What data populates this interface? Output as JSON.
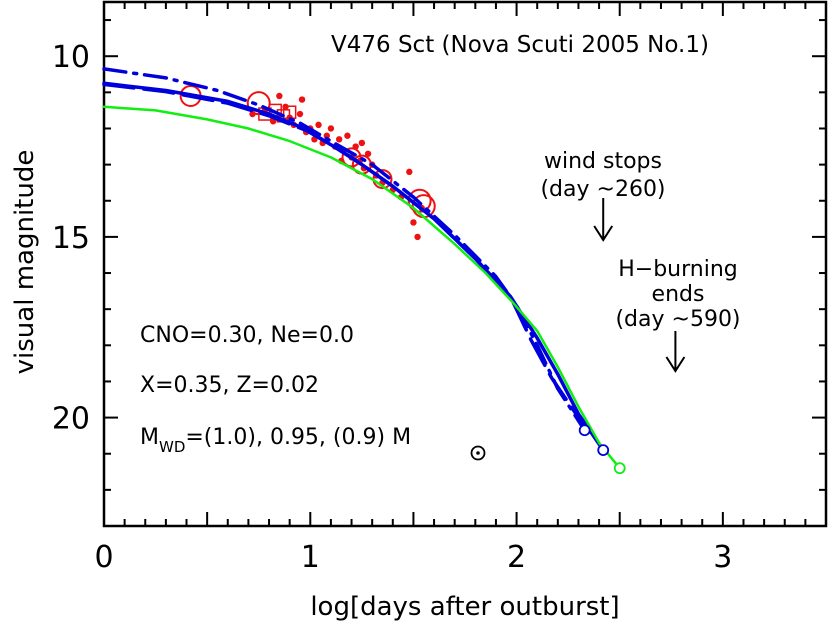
{
  "chart_data": {
    "type": "line",
    "title": "V476 Sct (Nova Scuti 2005 No.1)",
    "xlabel": "log[days after outburst]",
    "ylabel": "visual magnitude",
    "xlim": [
      0,
      3.5
    ],
    "ylim": [
      23,
      8.5
    ],
    "y_inverted": true,
    "x_ticks": [
      0,
      1,
      2,
      3
    ],
    "y_ticks": [
      10,
      15,
      20
    ],
    "grid": false,
    "series": [
      {
        "color": "#0000dd",
        "style": "solid",
        "points": [
          [
            0,
            10.75
          ],
          [
            0.3,
            10.95
          ],
          [
            0.6,
            11.25
          ],
          [
            0.8,
            11.6
          ],
          [
            0.95,
            11.95
          ],
          [
            1.1,
            12.45
          ],
          [
            1.25,
            13.0
          ],
          [
            1.4,
            13.6
          ],
          [
            1.6,
            14.5
          ],
          [
            1.8,
            15.6
          ],
          [
            1.97,
            16.65
          ],
          [
            2.1,
            17.8
          ],
          [
            2.2,
            18.8
          ],
          [
            2.3,
            19.9
          ],
          [
            2.42,
            20.9
          ]
        ]
      },
      {
        "color": "#0000dd",
        "style": "dash-dot",
        "points": [
          [
            0,
            10.35
          ],
          [
            0.3,
            10.6
          ],
          [
            0.55,
            10.95
          ],
          [
            0.75,
            11.35
          ],
          [
            0.95,
            11.85
          ],
          [
            1.1,
            12.35
          ],
          [
            1.3,
            13.0
          ],
          [
            1.5,
            13.9
          ],
          [
            1.7,
            14.95
          ],
          [
            1.9,
            16.1
          ],
          [
            2.0,
            16.9
          ],
          [
            2.1,
            18.0
          ],
          [
            2.2,
            19.2
          ],
          [
            2.33,
            20.35
          ]
        ]
      },
      {
        "color": "#0000dd",
        "style": "long-dash",
        "points": [
          [
            0,
            10.78
          ],
          [
            0.3,
            10.98
          ],
          [
            0.6,
            11.3
          ],
          [
            0.8,
            11.65
          ],
          [
            1.0,
            12.1
          ],
          [
            1.2,
            12.8
          ],
          [
            1.4,
            13.6
          ],
          [
            1.6,
            14.5
          ],
          [
            1.8,
            15.6
          ],
          [
            1.97,
            16.65
          ],
          [
            2.07,
            17.85
          ],
          [
            2.17,
            18.9
          ],
          [
            2.3,
            20.0
          ],
          [
            2.37,
            20.6
          ]
        ]
      },
      {
        "color": "#11ee11",
        "style": "solid",
        "points": [
          [
            0,
            11.4
          ],
          [
            0.25,
            11.5
          ],
          [
            0.5,
            11.75
          ],
          [
            0.7,
            12.0
          ],
          [
            0.9,
            12.35
          ],
          [
            1.1,
            12.8
          ],
          [
            1.3,
            13.4
          ],
          [
            1.5,
            14.2
          ],
          [
            1.7,
            15.2
          ],
          [
            1.85,
            16.0
          ],
          [
            1.98,
            16.8
          ],
          [
            2.1,
            17.6
          ],
          [
            2.2,
            18.6
          ],
          [
            2.3,
            19.7
          ],
          [
            2.4,
            20.7
          ],
          [
            2.5,
            21.4
          ]
        ]
      }
    ],
    "end_markers": [
      {
        "x": 2.33,
        "y": 20.35,
        "color": "#0000dd"
      },
      {
        "x": 2.42,
        "y": 20.9,
        "color": "#0000dd"
      },
      {
        "x": 2.5,
        "y": 21.4,
        "color": "#11ee11"
      }
    ],
    "observations_dots": [
      [
        0.72,
        11.6
      ],
      [
        0.78,
        11.5
      ],
      [
        0.82,
        11.8
      ],
      [
        0.85,
        11.1
      ],
      [
        0.88,
        11.4
      ],
      [
        0.9,
        11.7
      ],
      [
        0.92,
        11.9
      ],
      [
        0.95,
        11.6
      ],
      [
        0.98,
        12.1
      ],
      [
        1.0,
        12.0
      ],
      [
        1.02,
        12.3
      ],
      [
        1.04,
        11.9
      ],
      [
        1.06,
        12.4
      ],
      [
        1.08,
        12.2
      ],
      [
        1.1,
        12.0
      ],
      [
        1.12,
        12.5
      ],
      [
        1.14,
        12.3
      ],
      [
        1.16,
        12.6
      ],
      [
        1.18,
        12.2
      ],
      [
        1.2,
        12.8
      ],
      [
        1.22,
        12.5
      ],
      [
        1.24,
        12.9
      ],
      [
        1.26,
        13.1
      ],
      [
        1.28,
        12.7
      ],
      [
        1.3,
        13.0
      ],
      [
        1.32,
        13.3
      ],
      [
        1.35,
        13.5
      ],
      [
        1.4,
        13.7
      ],
      [
        1.44,
        13.9
      ],
      [
        1.48,
        13.2
      ],
      [
        1.5,
        14.6
      ],
      [
        1.52,
        15.0
      ],
      [
        1.54,
        14.2
      ],
      [
        0.96,
        11.2
      ],
      [
        1.15,
        12.9
      ],
      [
        1.25,
        12.4
      ]
    ],
    "observations_circles": [
      {
        "x": 0.42,
        "y": 11.1,
        "r": 10
      },
      {
        "x": 0.75,
        "y": 11.3,
        "r": 11
      },
      {
        "x": 1.2,
        "y": 12.8,
        "r": 9
      },
      {
        "x": 1.25,
        "y": 13.0,
        "r": 9
      },
      {
        "x": 1.35,
        "y": 13.4,
        "r": 9
      },
      {
        "x": 1.53,
        "y": 14.0,
        "r": 11
      },
      {
        "x": 1.55,
        "y": 14.15,
        "r": 11
      }
    ],
    "observations_squares": [
      {
        "x": 0.78,
        "y": 11.6
      },
      {
        "x": 0.83,
        "y": 11.5
      },
      {
        "x": 0.87,
        "y": 11.65
      },
      {
        "x": 0.9,
        "y": 11.55
      }
    ],
    "annotations": {
      "wind_line1": "wind stops",
      "wind_line2": "(day ~260)",
      "wind_arrow_x": 2.42,
      "hburn_line1": "H−burning",
      "hburn_line2": "ends",
      "hburn_line3": "(day ~590)",
      "hburn_arrow_x": 2.77
    },
    "params": {
      "line1": "CNO=0.30, Ne=0.0",
      "line2": "X=0.35, Z=0.02",
      "line3_prefix": "M",
      "line3_sub": "WD",
      "line3_mid": "=(1.0), 0.95, (0.9) M"
    }
  }
}
